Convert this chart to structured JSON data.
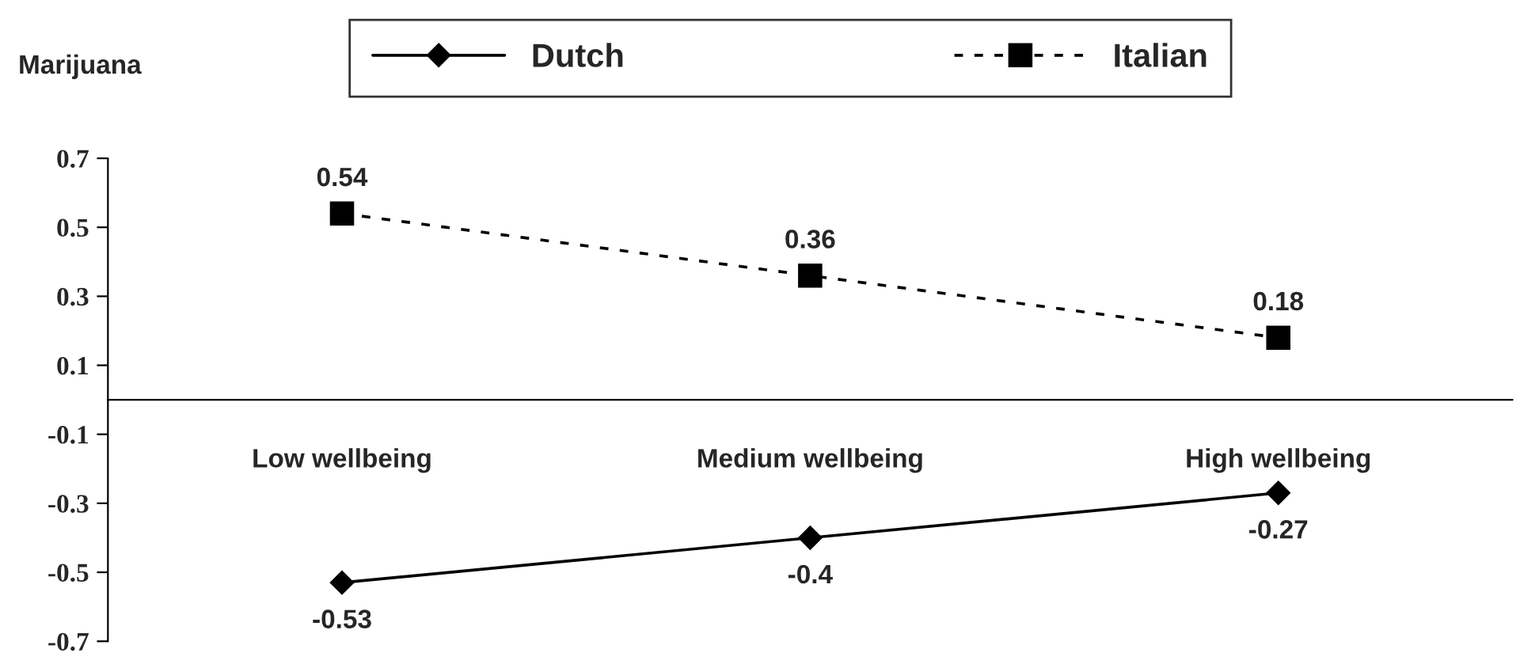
{
  "chart_data": {
    "type": "line",
    "title": "Marijuana",
    "categories": [
      "Low wellbeing",
      "Medium wellbeing",
      "High wellbeing"
    ],
    "series": [
      {
        "name": "Dutch",
        "color": "#000000",
        "values": [
          -0.53,
          -0.4,
          -0.27
        ],
        "marker": "diamond",
        "line_style": "solid"
      },
      {
        "name": "Italian",
        "color": "#000000",
        "values": [
          0.54,
          0.36,
          0.18
        ],
        "marker": "square",
        "line_style": "dashed"
      }
    ],
    "ylim": [
      -0.7,
      0.7
    ],
    "yticks": [
      -0.7,
      -0.5,
      -0.3,
      -0.1,
      0.1,
      0.3,
      0.5,
      0.7
    ],
    "data_labels": true,
    "grid": false,
    "legend": "top"
  }
}
